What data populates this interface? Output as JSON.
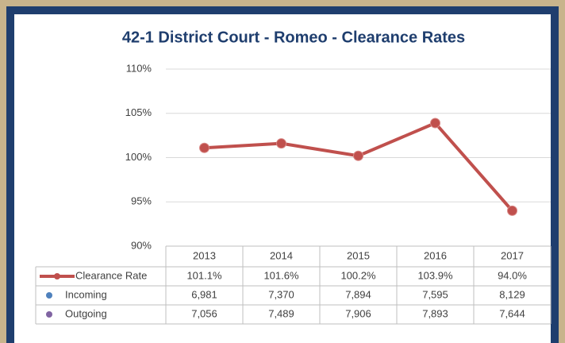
{
  "chart_data": {
    "type": "line",
    "title": "42-1 District Court - Romeo - Clearance Rates",
    "categories": [
      "2013",
      "2014",
      "2015",
      "2016",
      "2017"
    ],
    "ylim": [
      90,
      110
    ],
    "yticks": [
      {
        "value": 90,
        "label": "90%"
      },
      {
        "value": 95,
        "label": "95%"
      },
      {
        "value": 100,
        "label": "100%"
      },
      {
        "value": 105,
        "label": "105%"
      },
      {
        "value": 110,
        "label": "110%"
      }
    ],
    "grid": true,
    "series": [
      {
        "name": "Clearance Rate",
        "color": "#c0504d",
        "values": [
          101.1,
          101.6,
          100.2,
          103.9,
          94.0
        ],
        "value_labels": [
          "101.1%",
          "101.6%",
          "100.2%",
          "103.9%",
          "94.0%"
        ]
      },
      {
        "name": "Incoming",
        "color": "#4f81bd",
        "values": [
          6981,
          7370,
          7894,
          7595,
          8129
        ],
        "value_labels": [
          "6,981",
          "7,370",
          "7,894",
          "7,595",
          "8,129"
        ]
      },
      {
        "name": "Outgoing",
        "color": "#8064a2",
        "values": [
          7056,
          7489,
          7906,
          7893,
          7644
        ],
        "value_labels": [
          "7,056",
          "7,489",
          "7,906",
          "7,893",
          "7,644"
        ]
      }
    ]
  }
}
